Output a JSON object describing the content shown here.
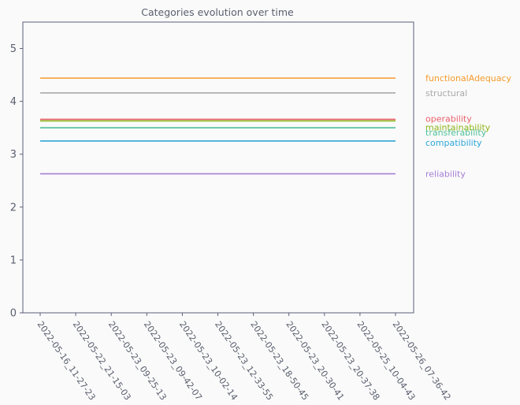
{
  "chart_data": {
    "type": "line",
    "title": "Categories evolution over time",
    "xlabel": "",
    "ylabel": "",
    "x": [
      "2022-05-16_11-27-23",
      "2022-05-22_21-15-03",
      "2022-05-23_09-25-13",
      "2022-05-23_09-42-07",
      "2022-05-23_10-02-14",
      "2022-05-23_12-33-55",
      "2022-05-23_18-50-45",
      "2022-05-23_20-30-41",
      "2022-05-23_20-37-38",
      "2022-05-25_10-04-43",
      "2022-05-26_07-36-42"
    ],
    "ylim": [
      0,
      5.5
    ],
    "yticks": [
      "0",
      "1",
      "2",
      "3",
      "4",
      "5"
    ],
    "grid": false,
    "legend_placement": "right (labels at line ends)",
    "series": [
      {
        "name": "functionalAdequacy",
        "color": "#f59a2c",
        "values": [
          4.44,
          4.44,
          4.44,
          4.44,
          4.44,
          4.44,
          4.44,
          4.44,
          4.44,
          4.44,
          4.44
        ]
      },
      {
        "name": "structural",
        "color": "#a9a9a9",
        "values": [
          4.16,
          4.16,
          4.16,
          4.16,
          4.16,
          4.16,
          4.16,
          4.16,
          4.16,
          4.16,
          4.16
        ]
      },
      {
        "name": "operability",
        "color": "#e8606c",
        "values": [
          3.66,
          3.66,
          3.66,
          3.66,
          3.66,
          3.66,
          3.66,
          3.66,
          3.66,
          3.66,
          3.66
        ]
      },
      {
        "name": "maintainability",
        "color": "#8db51a",
        "values": [
          3.63,
          3.63,
          3.63,
          3.63,
          3.63,
          3.63,
          3.63,
          3.63,
          3.63,
          3.63,
          3.63
        ]
      },
      {
        "name": "transferability",
        "color": "#4fbf9a",
        "values": [
          3.5,
          3.5,
          3.5,
          3.5,
          3.5,
          3.5,
          3.5,
          3.5,
          3.5,
          3.5,
          3.5
        ]
      },
      {
        "name": "compatibility",
        "color": "#2ea6d8",
        "values": [
          3.25,
          3.25,
          3.25,
          3.25,
          3.25,
          3.25,
          3.25,
          3.25,
          3.25,
          3.25,
          3.25
        ]
      },
      {
        "name": "reliability",
        "color": "#a77fd6",
        "values": [
          2.63,
          2.63,
          2.63,
          2.63,
          2.63,
          2.63,
          2.63,
          2.63,
          2.63,
          2.63,
          2.63
        ]
      }
    ],
    "colors": {
      "axis": "#5a5f7a",
      "text": "#5a5f6e",
      "background": "#fafafa"
    }
  }
}
